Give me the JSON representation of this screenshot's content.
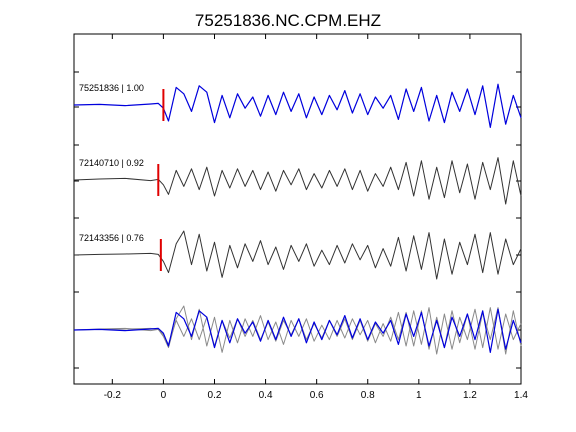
{
  "chart_data": {
    "type": "line",
    "title": "75251836.NC.CPM.EHZ",
    "xlabel": "",
    "ylabel": "",
    "xlim": [
      -0.35,
      1.4
    ],
    "xticks": [
      -0.2,
      0,
      0.2,
      0.4,
      0.6,
      0.8,
      1,
      1.2,
      1.4
    ],
    "xtick_labels": [
      "-0.2",
      "0",
      "0.2",
      "0.4",
      "0.6",
      "0.8",
      "1",
      "1.2",
      "1.4"
    ],
    "grid": false,
    "legend": "none",
    "pick_color": "#e00000",
    "traces": [
      {
        "label": "75251836 | 1.00",
        "color": "#0000dd",
        "pick_time": 0.0,
        "offset": 3,
        "x": [
          -0.35,
          -0.25,
          -0.15,
          -0.05,
          -0.02,
          0.0,
          0.02,
          0.05,
          0.08,
          0.11,
          0.14,
          0.17,
          0.2,
          0.23,
          0.26,
          0.29,
          0.32,
          0.35,
          0.38,
          0.41,
          0.44,
          0.47,
          0.5,
          0.53,
          0.56,
          0.59,
          0.62,
          0.65,
          0.68,
          0.71,
          0.74,
          0.77,
          0.8,
          0.83,
          0.86,
          0.89,
          0.92,
          0.95,
          0.98,
          1.01,
          1.04,
          1.07,
          1.1,
          1.13,
          1.16,
          1.19,
          1.22,
          1.25,
          1.28,
          1.31,
          1.34,
          1.37,
          1.4
        ],
        "y": [
          0,
          0.02,
          -0.02,
          0.03,
          0.05,
          -0.1,
          -0.5,
          0.55,
          0.35,
          -0.2,
          0.6,
          0.4,
          -0.55,
          0.3,
          -0.4,
          0.35,
          -0.1,
          0.25,
          -0.35,
          0.3,
          -0.3,
          0.4,
          -0.2,
          0.35,
          -0.4,
          0.25,
          -0.3,
          0.3,
          -0.15,
          0.45,
          -0.25,
          0.35,
          -0.3,
          0.25,
          -0.1,
          0.3,
          -0.45,
          0.5,
          -0.2,
          0.55,
          -0.5,
          0.3,
          -0.55,
          0.4,
          -0.2,
          0.5,
          -0.3,
          0.6,
          -0.7,
          0.65,
          -0.6,
          0.3,
          -0.4
        ]
      },
      {
        "label": "72140710 | 0.92",
        "color": "#333333",
        "pick_time": -0.02,
        "offset": 2,
        "x": [
          -0.35,
          -0.25,
          -0.15,
          -0.05,
          -0.02,
          0.0,
          0.02,
          0.05,
          0.08,
          0.11,
          0.14,
          0.17,
          0.2,
          0.23,
          0.26,
          0.29,
          0.32,
          0.35,
          0.38,
          0.41,
          0.44,
          0.47,
          0.5,
          0.53,
          0.56,
          0.59,
          0.62,
          0.65,
          0.68,
          0.71,
          0.74,
          0.77,
          0.8,
          0.83,
          0.86,
          0.89,
          0.92,
          0.95,
          0.98,
          1.01,
          1.04,
          1.07,
          1.1,
          1.13,
          1.16,
          1.19,
          1.22,
          1.25,
          1.28,
          1.31,
          1.34,
          1.37,
          1.4
        ],
        "y": [
          0,
          0.03,
          0.05,
          -0.02,
          0.02,
          -0.15,
          -0.45,
          0.3,
          -0.2,
          0.35,
          -0.3,
          0.4,
          -0.5,
          0.3,
          -0.25,
          0.35,
          -0.2,
          0.3,
          -0.3,
          0.25,
          -0.35,
          0.3,
          -0.15,
          0.35,
          -0.3,
          0.2,
          -0.25,
          0.3,
          -0.2,
          0.35,
          -0.3,
          0.3,
          -0.35,
          0.2,
          -0.2,
          0.4,
          -0.3,
          0.55,
          -0.5,
          0.6,
          -0.6,
          0.4,
          -0.55,
          0.6,
          -0.4,
          0.5,
          -0.6,
          0.55,
          -0.3,
          0.7,
          -0.75,
          0.6,
          -0.5
        ]
      },
      {
        "label": "72143356 | 0.76",
        "color": "#333333",
        "pick_time": -0.01,
        "offset": 1,
        "x": [
          -0.35,
          -0.25,
          -0.15,
          -0.05,
          -0.02,
          0.0,
          0.02,
          0.05,
          0.08,
          0.11,
          0.14,
          0.17,
          0.2,
          0.23,
          0.26,
          0.29,
          0.32,
          0.35,
          0.38,
          0.41,
          0.44,
          0.47,
          0.5,
          0.53,
          0.56,
          0.59,
          0.62,
          0.65,
          0.68,
          0.71,
          0.74,
          0.77,
          0.8,
          0.83,
          0.86,
          0.89,
          0.92,
          0.95,
          0.98,
          1.01,
          1.04,
          1.07,
          1.1,
          1.13,
          1.16,
          1.19,
          1.22,
          1.25,
          1.28,
          1.31,
          1.34,
          1.37,
          1.4
        ],
        "y": [
          0,
          0.02,
          0.03,
          0.05,
          0.02,
          -0.2,
          -0.55,
          0.35,
          0.75,
          -0.3,
          0.65,
          -0.5,
          0.4,
          -0.7,
          0.3,
          -0.4,
          0.35,
          -0.2,
          0.45,
          -0.3,
          0.25,
          -0.45,
          0.3,
          -0.2,
          0.35,
          -0.35,
          0.15,
          -0.3,
          0.3,
          -0.25,
          0.35,
          -0.15,
          0.3,
          -0.4,
          0.2,
          -0.35,
          0.55,
          -0.5,
          0.6,
          -0.45,
          0.7,
          -0.75,
          0.5,
          -0.6,
          0.4,
          -0.3,
          0.65,
          -0.55,
          0.7,
          -0.6,
          0.5,
          -0.3,
          0.2
        ]
      }
    ],
    "stack": {
      "offset": 0
    }
  }
}
